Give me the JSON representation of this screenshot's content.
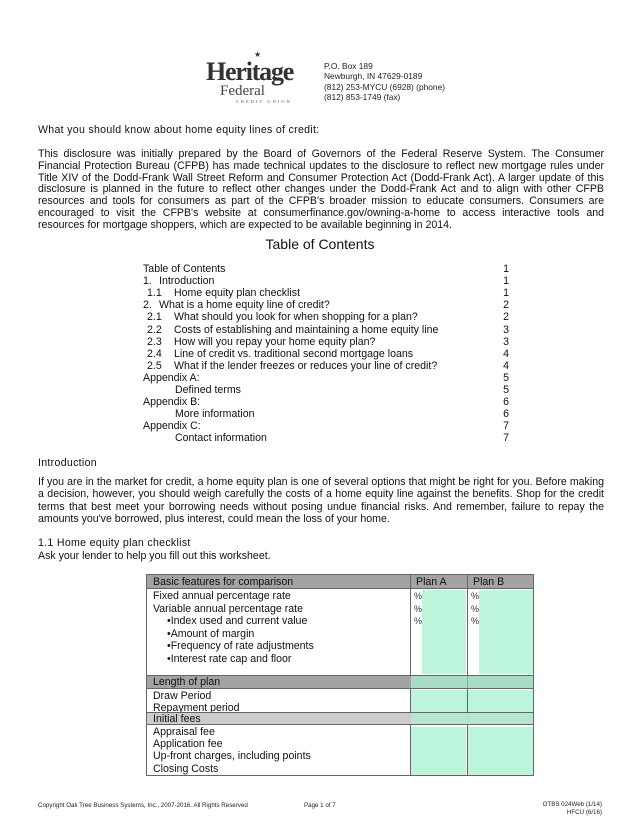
{
  "letterhead": {
    "logo_text": "Heritage Federal",
    "logo_sub": "CREDIT UNION",
    "address": [
      "P.O. Box 189",
      "Newburgh, IN 47629-0189",
      "(812) 253-MYCU (6928) (phone)",
      "(812) 853-1749 (fax)"
    ]
  },
  "intro_heading": "What you should know about home equity lines of credit:",
  "intro_paragraph": "This disclosure was initially prepared by the Board of Governors of the Federal Reserve System. The Consumer Financial Protection Bureau (CFPB) has made technical updates to the disclosure to reflect new mortgage rules under Title XIV of the Dodd-Frank Wall Street Reform and Consumer Protection Act (Dodd-Frank Act).  A larger update of this disclosure is planned in the future to reflect other changes under the Dodd-Frank Act and to align with other CFPB resources and tools for consumers as part of the CFPB's broader mission to educate consumers.  Consumers are encouraged to visit the CFPB's website at consumerfinance.gov/owning-a-home to access interactive tools and resources for mortgage shoppers, which are expected to be available beginning in 2014.",
  "toc": {
    "title": "Table of Contents",
    "rows": [
      {
        "num": "",
        "label": "Table of Contents",
        "page": "1",
        "indent": 0
      },
      {
        "num": "1.",
        "label": "Introduction",
        "page": "1",
        "indent": 0
      },
      {
        "num": "1.1",
        "label": "Home equity plan checklist",
        "page": "1",
        "indent": 1
      },
      {
        "num": "2.",
        "label": "What is a home equity line of credit?",
        "page": "2",
        "indent": 0
      },
      {
        "num": "2.1",
        "label": "What should you look for when shopping for a plan?",
        "page": "2",
        "indent": 1
      },
      {
        "num": "2.2",
        "label": "Costs of establishing and maintaining a home equity line",
        "page": "3",
        "indent": 1
      },
      {
        "num": "2.3",
        "label": "How will you repay your home equity plan?",
        "page": "3",
        "indent": 1
      },
      {
        "num": "2.4",
        "label": "Line of credit vs. traditional second mortgage loans",
        "page": "4",
        "indent": 1
      },
      {
        "num": "2.5",
        "label": "What if the lender freezes or reduces your line of credit?",
        "page": "4",
        "indent": 1
      },
      {
        "num": "",
        "label": "Appendix A:",
        "page": "5",
        "indent": 0
      },
      {
        "num": "",
        "label": "Defined terms",
        "page": "5",
        "indent": 2
      },
      {
        "num": "",
        "label": "Appendix B:",
        "page": "6",
        "indent": 0
      },
      {
        "num": "",
        "label": "More information",
        "page": "6",
        "indent": 2
      },
      {
        "num": "",
        "label": "Appendix C:",
        "page": "7",
        "indent": 0
      },
      {
        "num": "",
        "label": "Contact information",
        "page": "7",
        "indent": 2
      }
    ]
  },
  "introduction": {
    "heading": "Introduction",
    "paragraph": "If you are in the market for credit, a home equity plan is one of several options that might be right for you. Before making a decision, however, you should weigh carefully the costs of a home equity line against the benefits. Shop for the credit terms that best meet your borrowing needs without posing undue financial risks. And remember, failure to repay the amounts you've borrowed, plus interest, could mean the loss of your home."
  },
  "checklist": {
    "heading": "1.1  Home equity plan checklist",
    "subheading": "Ask your lender to help you fill out this worksheet.",
    "table": {
      "headers": [
        "Basic features for comparison",
        "Plan A",
        "Plan B"
      ],
      "basic_rows": [
        "Fixed annual percentage rate",
        "Variable annual percentage rate",
        "•Index used and current value",
        "•Amount of margin",
        "•Frequency of rate adjustments",
        "•Interest rate cap and floor"
      ],
      "percent_symbol": "%",
      "length_header": "Length of plan",
      "length_rows": [
        "Draw Period",
        "Repayment period"
      ],
      "fees_header": "Initial fees",
      "fees_rows": [
        "Appraisal fee",
        "Application fee",
        "Up-front charges, including points",
        "Closing Costs"
      ]
    }
  },
  "footer": {
    "copyright": "Copyright Oak Tree Business Systems, Inc., 2007-2016.  All Rights Reserved",
    "page": "Page 1 of 7",
    "form_id": "OTBS 024Web (1/14)",
    "form_id2": "HFCU (6/16)"
  },
  "colors": {
    "field_green": "#bdf5dc",
    "header_gray": "#a3a3a3",
    "subheader_gray": "#cccccc"
  }
}
